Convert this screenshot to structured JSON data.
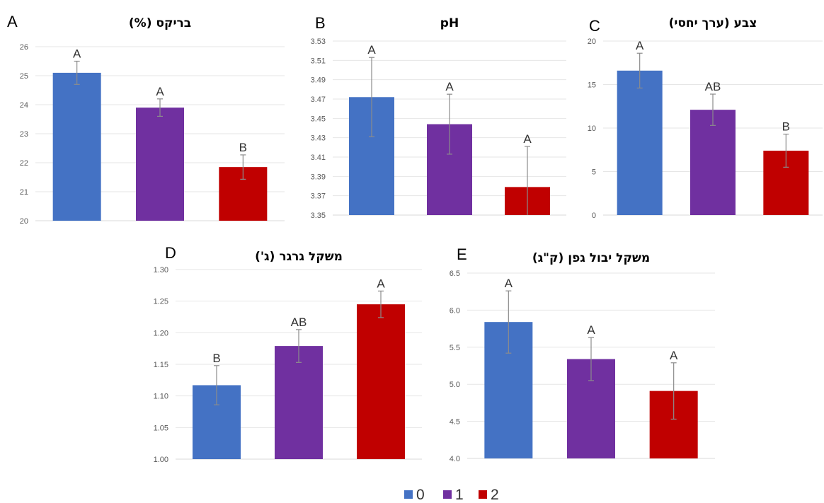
{
  "colors": {
    "0": "#4472C4",
    "1": "#7030A0",
    "2": "#C00000"
  },
  "legend": {
    "entries": [
      {
        "label": "0",
        "color": "#4472C4"
      },
      {
        "label": "1",
        "color": "#7030A0"
      },
      {
        "label": "2",
        "color": "#C00000"
      }
    ]
  },
  "chart_data": [
    {
      "type": "bar",
      "panel": "A",
      "title": "בריקס (%)",
      "categories": [
        "0",
        "1",
        "2"
      ],
      "values": [
        25.1,
        23.9,
        21.85
      ],
      "errors": [
        0.4,
        0.3,
        0.42
      ],
      "letters": [
        "A",
        "A",
        "B"
      ],
      "ylim": [
        20,
        26
      ],
      "yticks": [
        "20",
        "21",
        "22",
        "23",
        "24",
        "25",
        "26"
      ],
      "grid": true
    },
    {
      "type": "bar",
      "panel": "B",
      "title": "pH",
      "categories": [
        "0",
        "1",
        "2"
      ],
      "values": [
        3.472,
        3.444,
        3.379
      ],
      "errors": [
        0.041,
        0.031,
        0.042
      ],
      "letters": [
        "A",
        "A",
        "A"
      ],
      "ylim": [
        3.35,
        3.53
      ],
      "yticks": [
        "3.35",
        "3.37",
        "3.39",
        "3.41",
        "3.43",
        "3.45",
        "3.47",
        "3.49",
        "3.51",
        "3.53"
      ],
      "grid": true
    },
    {
      "type": "bar",
      "panel": "C",
      "title": "צבע (ערך יחסי)",
      "categories": [
        "0",
        "1",
        "2"
      ],
      "values": [
        16.6,
        12.1,
        7.4
      ],
      "errors": [
        2.0,
        1.8,
        1.9
      ],
      "letters": [
        "A",
        "AB",
        "B"
      ],
      "ylim": [
        0,
        20
      ],
      "yticks": [
        "0",
        "5",
        "10",
        "15",
        "20"
      ],
      "grid": true
    },
    {
      "type": "bar",
      "panel": "D",
      "title": "משקל גרגר (ג')",
      "categories": [
        "0",
        "1",
        "2"
      ],
      "values": [
        1.117,
        1.179,
        1.245
      ],
      "errors": [
        0.031,
        0.026,
        0.021
      ],
      "letters": [
        "B",
        "AB",
        "A"
      ],
      "ylim": [
        1.0,
        1.3
      ],
      "yticks": [
        "1.00",
        "1.05",
        "1.10",
        "1.15",
        "1.20",
        "1.25",
        "1.30"
      ],
      "grid": true
    },
    {
      "type": "bar",
      "panel": "E",
      "title": "משקל יבול גפן (ק\"ג)",
      "categories": [
        "0",
        "1",
        "2"
      ],
      "values": [
        5.84,
        5.34,
        4.91
      ],
      "errors": [
        0.42,
        0.29,
        0.38
      ],
      "letters": [
        "A",
        "A",
        "A"
      ],
      "ylim": [
        4.0,
        6.5
      ],
      "yticks": [
        "4.0",
        "4.5",
        "5.0",
        "5.5",
        "6.0",
        "6.5"
      ],
      "grid": true
    }
  ]
}
